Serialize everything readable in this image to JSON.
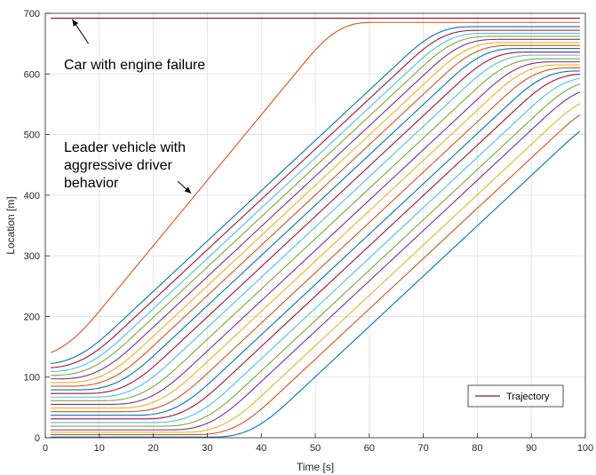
{
  "chart_data": {
    "type": "line",
    "xlabel": "Time [s]",
    "ylabel": "Location [m]",
    "xlim": [
      0,
      100
    ],
    "ylim": [
      0,
      700
    ],
    "xticks": [
      0,
      10,
      20,
      30,
      40,
      50,
      60,
      70,
      80,
      90,
      100
    ],
    "yticks": [
      0,
      100,
      200,
      300,
      400,
      500,
      600,
      700
    ],
    "grid": true,
    "legend": {
      "position": "lower-right",
      "entries": [
        "Trajectory"
      ],
      "color": "#7e1d1d"
    },
    "annotations": [
      {
        "lines": [
          "Car with engine failure"
        ],
        "arrow_tail": [
          8,
          650
        ],
        "arrow_head": [
          5,
          690
        ]
      },
      {
        "lines": [
          "Leader vehicle with",
          "aggressive driver",
          "behavior"
        ],
        "arrow_tail": [
          24.5,
          423
        ],
        "arrow_head": [
          27,
          403
        ]
      }
    ],
    "stalled_car": {
      "position": 692,
      "color": "#a2142f"
    },
    "colors": [
      "#0072bd",
      "#d95319",
      "#edb120",
      "#7e2f8e",
      "#77ac30",
      "#4dbeee",
      "#a2142f"
    ],
    "series": [
      {
        "start": 1,
        "end": 534,
        "t_start": 30,
        "v": 8.3
      },
      {
        "start": 5,
        "end": 555,
        "t_start": 27,
        "v": 8.3
      },
      {
        "start": 9,
        "end": 567,
        "t_start": 24.8,
        "v": 8.3
      },
      {
        "start": 13,
        "end": 580,
        "t_start": 22.4,
        "v": 8.3
      },
      {
        "start": 19,
        "end": 590,
        "t_start": 21,
        "v": 8.3
      },
      {
        "start": 25,
        "end": 595,
        "t_start": 19.3,
        "v": 8.3
      },
      {
        "start": 31,
        "end": 600,
        "t_start": 17.6,
        "v": 8.3
      },
      {
        "start": 37,
        "end": 605,
        "t_start": 16,
        "v": 8.3
      },
      {
        "start": 43,
        "end": 610,
        "t_start": 14.4,
        "v": 8.3
      },
      {
        "start": 49,
        "end": 615,
        "t_start": 12.8,
        "v": 8.3
      },
      {
        "start": 55,
        "end": 620,
        "t_start": 11.4,
        "v": 8.3
      },
      {
        "start": 61,
        "end": 625,
        "t_start": 9.8,
        "v": 8.3
      },
      {
        "start": 67,
        "end": 631,
        "t_start": 8.2,
        "v": 8.3
      },
      {
        "start": 73,
        "end": 636,
        "t_start": 6.8,
        "v": 8.3
      },
      {
        "start": 79,
        "end": 642,
        "t_start": 5.3,
        "v": 8.3
      },
      {
        "start": 85,
        "end": 647,
        "t_start": 4,
        "v": 8.3
      },
      {
        "start": 91,
        "end": 652,
        "t_start": 2.8,
        "v": 8.3
      },
      {
        "start": 97,
        "end": 657,
        "t_start": 1.7,
        "v": 8.3
      },
      {
        "start": 103,
        "end": 662,
        "t_start": 0.5,
        "v": 8.3
      },
      {
        "start": 109,
        "end": 667,
        "t_start": -0.5,
        "v": 8.3
      },
      {
        "start": 115,
        "end": 672,
        "t_start": -1.5,
        "v": 8.3
      },
      {
        "start": 121,
        "end": 678,
        "t_start": -2.5,
        "v": 8.3
      },
      {
        "start": 133,
        "end": 685,
        "t_start": -5,
        "v": 10.8
      }
    ]
  }
}
